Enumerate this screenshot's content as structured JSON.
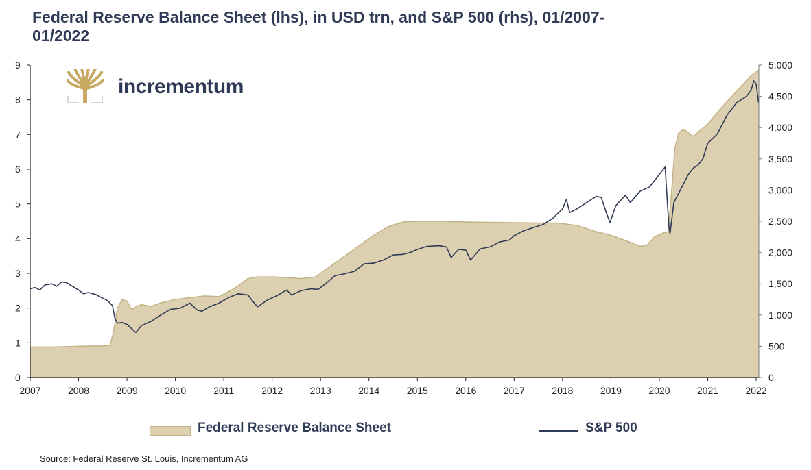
{
  "chart_data": {
    "type": "area+line",
    "title": "Federal Reserve Balance Sheet (lhs), in USD trn, and S&P 500 (rhs), 01/2007-01/2022",
    "x_ticks": [
      "2007",
      "2008",
      "2009",
      "2010",
      "2011",
      "2012",
      "2013",
      "2014",
      "2015",
      "2016",
      "2017",
      "2018",
      "2019",
      "2020",
      "2021",
      "2022"
    ],
    "xlim": [
      2007,
      2022.1
    ],
    "y_left": {
      "label": "USD trn",
      "ticks": [
        "0",
        "1",
        "2",
        "3",
        "4",
        "5",
        "6",
        "7",
        "8",
        "9"
      ],
      "ylim": [
        0,
        9
      ]
    },
    "y_right": {
      "label": "S&P 500",
      "ticks": [
        "0",
        "500",
        "1,000",
        "1,500",
        "2,000",
        "2,500",
        "3,000",
        "3,500",
        "4,000",
        "4,500",
        "5,000"
      ],
      "ylim": [
        0,
        5000
      ]
    },
    "grid": false,
    "legend_position": "bottom",
    "series": [
      {
        "name": "Federal Reserve Balance Sheet",
        "axis": "left",
        "type": "area",
        "color": "#ddd0b0",
        "edge_color": "#c2b284",
        "x": [
          2007.0,
          2007.5,
          2008.0,
          2008.3,
          2008.5,
          2008.65,
          2008.72,
          2008.8,
          2008.9,
          2009.0,
          2009.1,
          2009.2,
          2009.3,
          2009.5,
          2009.7,
          2010.0,
          2010.3,
          2010.6,
          2010.9,
          2011.2,
          2011.5,
          2011.7,
          2012.0,
          2012.3,
          2012.6,
          2012.9,
          2013.2,
          2013.5,
          2013.8,
          2014.1,
          2014.4,
          2014.7,
          2015.0,
          2015.5,
          2016.0,
          2016.5,
          2017.0,
          2017.5,
          2017.9,
          2018.3,
          2018.7,
          2019.0,
          2019.3,
          2019.6,
          2019.75,
          2019.9,
          2020.1,
          2020.18,
          2020.25,
          2020.32,
          2020.4,
          2020.5,
          2020.7,
          2021.0,
          2021.3,
          2021.6,
          2021.9,
          2022.05
        ],
        "values": [
          0.88,
          0.88,
          0.9,
          0.91,
          0.91,
          0.93,
          1.3,
          2.0,
          2.25,
          2.2,
          1.95,
          2.05,
          2.1,
          2.05,
          2.15,
          2.25,
          2.3,
          2.35,
          2.33,
          2.55,
          2.85,
          2.9,
          2.9,
          2.88,
          2.85,
          2.9,
          3.2,
          3.5,
          3.8,
          4.1,
          4.35,
          4.48,
          4.5,
          4.5,
          4.48,
          4.47,
          4.46,
          4.45,
          4.45,
          4.38,
          4.2,
          4.1,
          3.95,
          3.78,
          3.82,
          4.05,
          4.18,
          4.2,
          5.3,
          6.6,
          7.05,
          7.15,
          6.95,
          7.3,
          7.8,
          8.25,
          8.7,
          8.85
        ]
      },
      {
        "name": "S&P 500",
        "axis": "right",
        "type": "line",
        "color": "#2f3a56",
        "x": [
          2007.0,
          2007.1,
          2007.2,
          2007.3,
          2007.45,
          2007.55,
          2007.65,
          2007.75,
          2007.85,
          2008.0,
          2008.1,
          2008.2,
          2008.35,
          2008.5,
          2008.6,
          2008.7,
          2008.75,
          2008.8,
          2008.9,
          2009.0,
          2009.1,
          2009.18,
          2009.3,
          2009.5,
          2009.7,
          2009.9,
          2010.1,
          2010.3,
          2010.45,
          2010.55,
          2010.7,
          2010.9,
          2011.1,
          2011.3,
          2011.5,
          2011.62,
          2011.7,
          2011.9,
          2012.1,
          2012.3,
          2012.4,
          2012.6,
          2012.8,
          2012.95,
          2013.1,
          2013.3,
          2013.5,
          2013.7,
          2013.9,
          2014.1,
          2014.3,
          2014.5,
          2014.7,
          2014.85,
          2015.0,
          2015.2,
          2015.45,
          2015.6,
          2015.7,
          2015.85,
          2016.0,
          2016.1,
          2016.3,
          2016.5,
          2016.7,
          2016.9,
          2017.0,
          2017.2,
          2017.4,
          2017.6,
          2017.8,
          2018.0,
          2018.08,
          2018.15,
          2018.3,
          2018.5,
          2018.7,
          2018.8,
          2018.9,
          2018.98,
          2019.1,
          2019.3,
          2019.4,
          2019.6,
          2019.8,
          2020.0,
          2020.12,
          2020.15,
          2020.2,
          2020.22,
          2020.3,
          2020.4,
          2020.5,
          2020.6,
          2020.7,
          2020.8,
          2020.9,
          2021.0,
          2021.2,
          2021.4,
          2021.6,
          2021.8,
          2021.9,
          2021.95,
          2022.0,
          2022.05
        ],
        "values": [
          1420,
          1440,
          1400,
          1480,
          1500,
          1460,
          1530,
          1520,
          1470,
          1400,
          1340,
          1360,
          1330,
          1270,
          1230,
          1150,
          950,
          870,
          880,
          850,
          780,
          720,
          830,
          900,
          1000,
          1090,
          1110,
          1190,
          1080,
          1060,
          1130,
          1190,
          1280,
          1340,
          1320,
          1200,
          1130,
          1240,
          1310,
          1400,
          1320,
          1390,
          1420,
          1410,
          1500,
          1630,
          1660,
          1700,
          1820,
          1830,
          1880,
          1960,
          1970,
          2000,
          2050,
          2100,
          2110,
          2090,
          1920,
          2050,
          2040,
          1880,
          2060,
          2090,
          2170,
          2200,
          2270,
          2350,
          2400,
          2450,
          2550,
          2700,
          2850,
          2640,
          2700,
          2800,
          2900,
          2880,
          2650,
          2480,
          2750,
          2920,
          2800,
          2980,
          3050,
          3250,
          3370,
          3000,
          2400,
          2300,
          2800,
          2950,
          3100,
          3250,
          3350,
          3400,
          3500,
          3750,
          3900,
          4200,
          4400,
          4500,
          4600,
          4750,
          4700,
          4400
        ]
      }
    ]
  },
  "header": {
    "title_line1": "Federal Reserve Balance Sheet (lhs), in USD trn, and S&P 500 (rhs), 01/2007-",
    "title_line2": "01/2022"
  },
  "logo": {
    "text": "incrementum",
    "icon": "tree-logo-icon"
  },
  "legend": {
    "fed_label": "Federal Reserve Balance Sheet",
    "sp_label": "S&P 500"
  },
  "source": "Source: Federal Reserve St. Louis, Incrementum AG"
}
